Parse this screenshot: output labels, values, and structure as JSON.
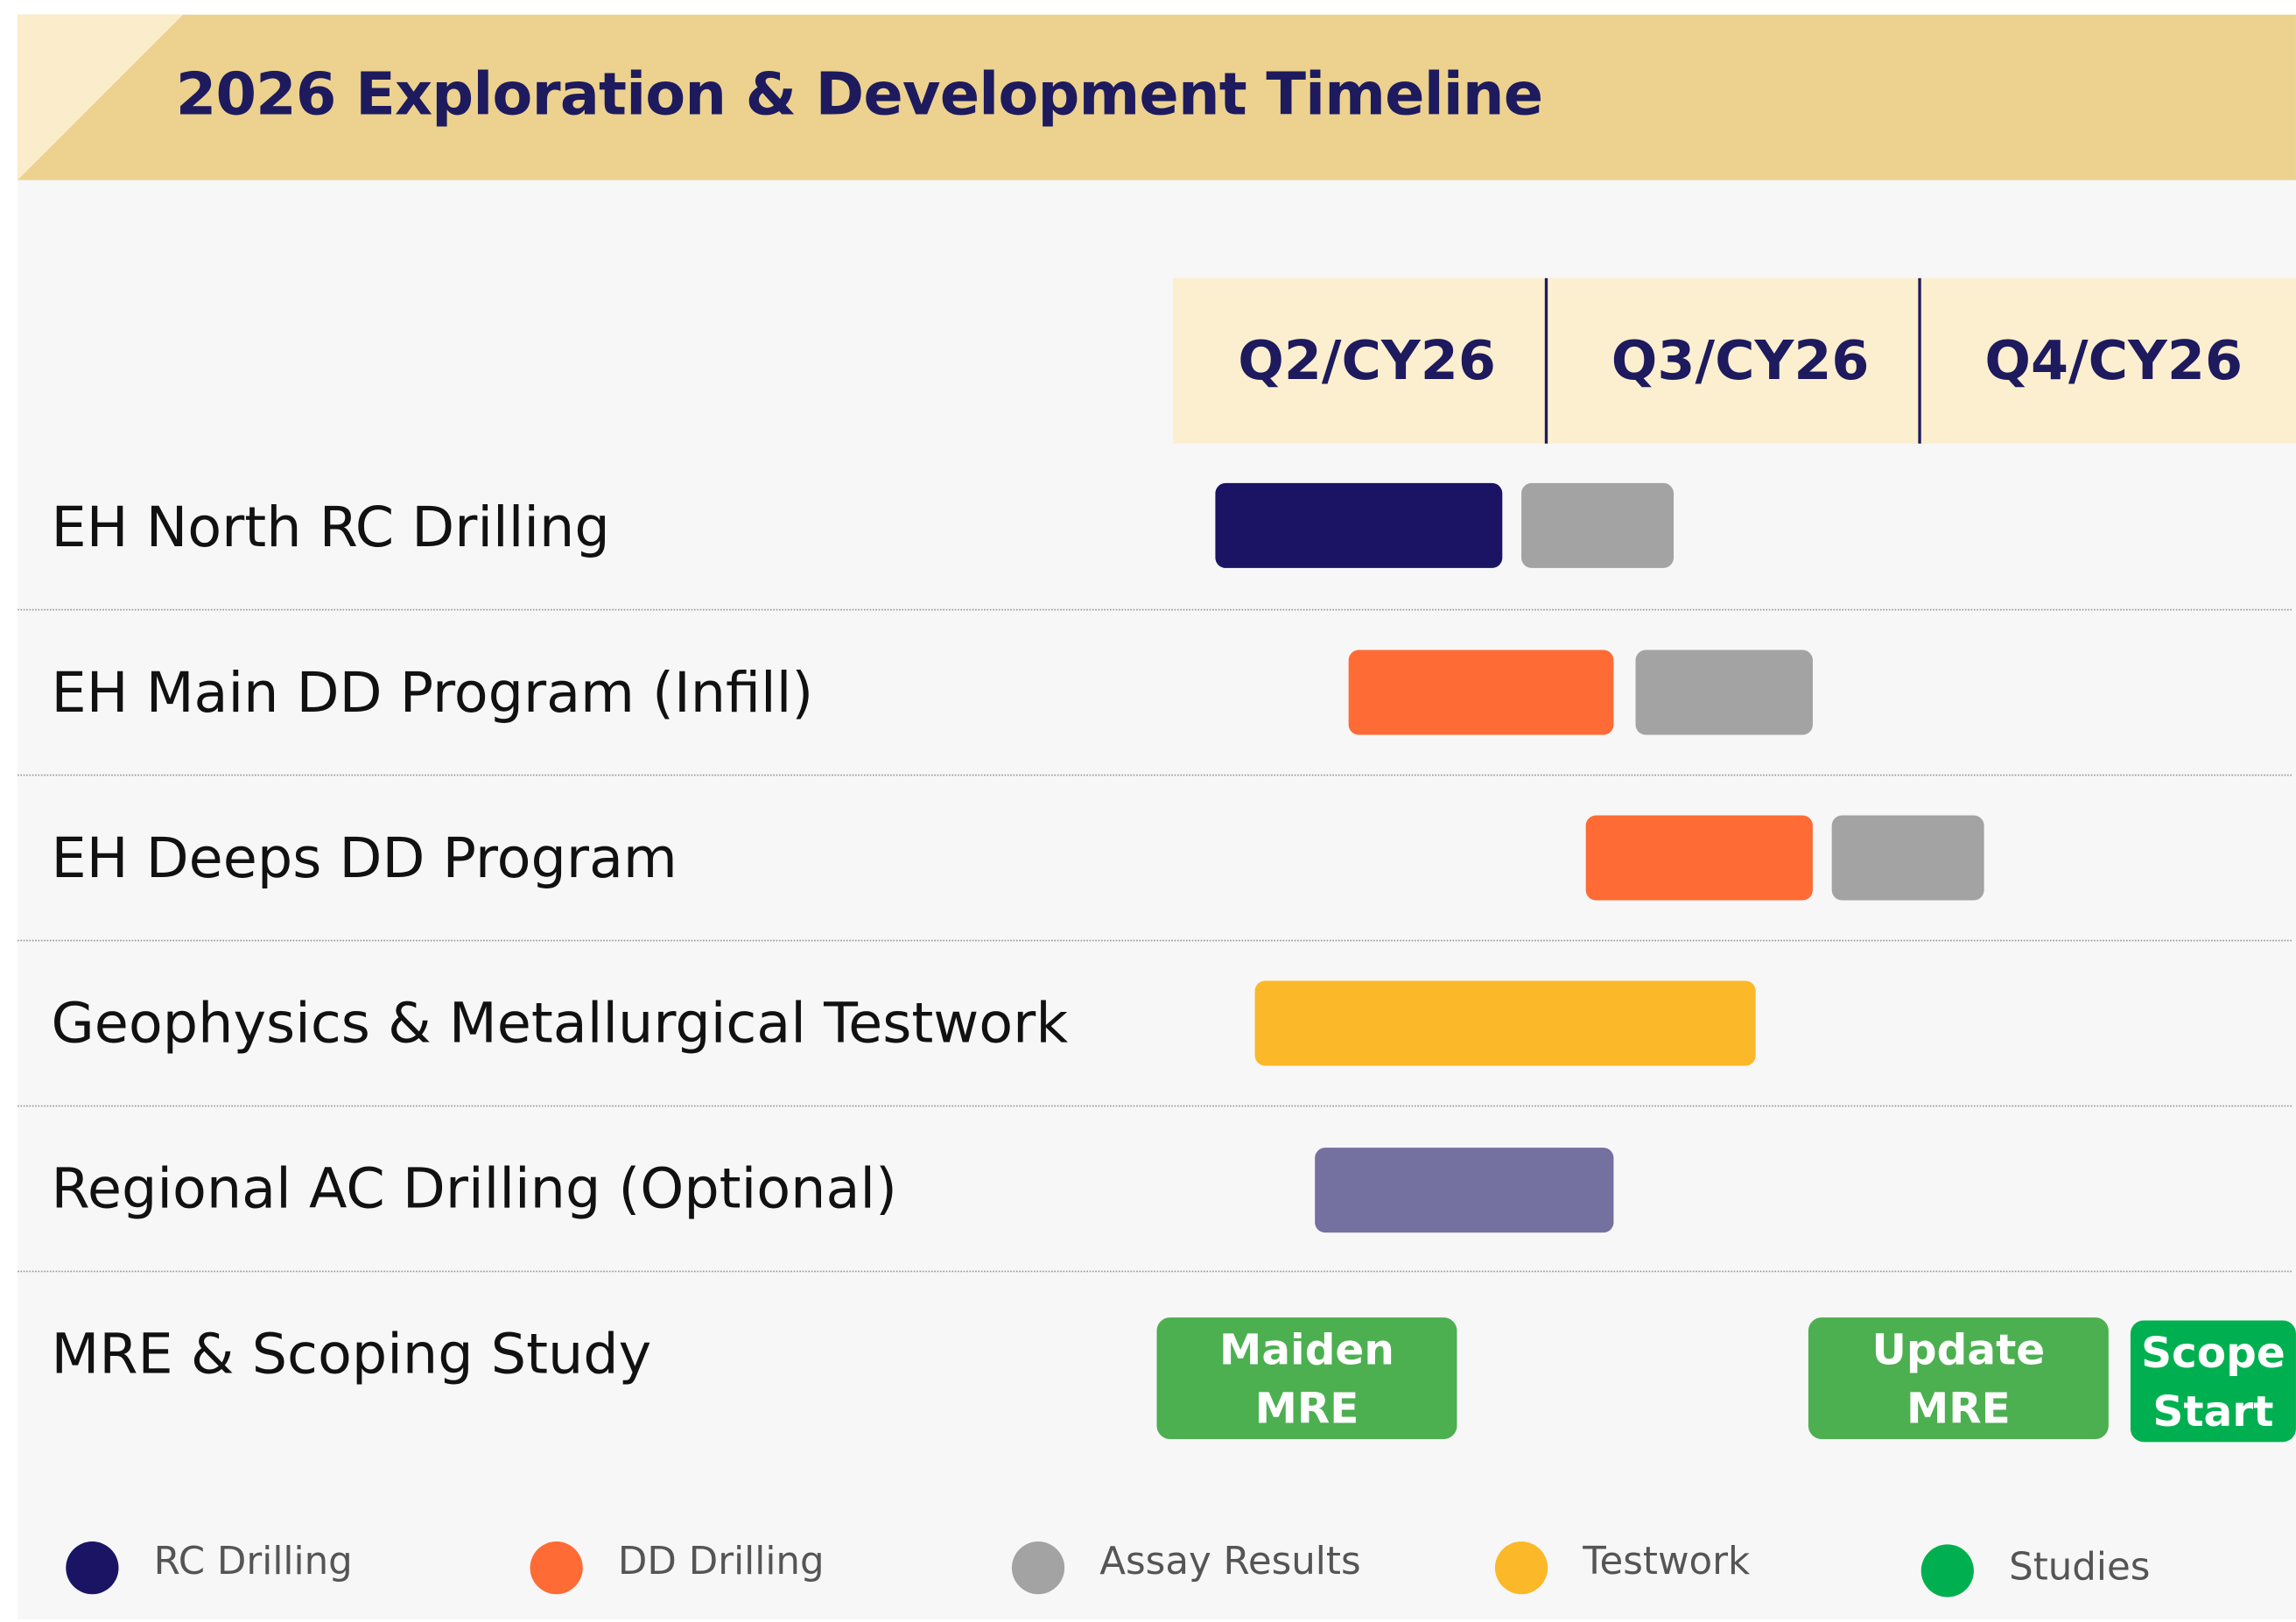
{
  "header": {
    "title": "2026 Exploration & Development Timeline"
  },
  "quarters": [
    "Q2/CY26",
    "Q3/CY26",
    "Q4/CY26"
  ],
  "tasks": [
    {
      "label": "EH North RC Drilling"
    },
    {
      "label": "EH Main DD Program (Infill)"
    },
    {
      "label": "EH Deeps DD Program"
    },
    {
      "label": "Geophysics & Metallurgical Testwork"
    },
    {
      "label": "Regional AC Drilling (Optional)"
    },
    {
      "label": "MRE & Scoping Study"
    }
  ],
  "milestones": [
    {
      "label": "Maiden MRE"
    },
    {
      "label": "Update MRE"
    },
    {
      "label": "Scope Start"
    }
  ],
  "legend": [
    {
      "label": "RC Drilling"
    },
    {
      "label": "DD Drilling"
    },
    {
      "label": "Assay Results"
    },
    {
      "label": "Testwork"
    },
    {
      "label": "Studies"
    }
  ]
}
